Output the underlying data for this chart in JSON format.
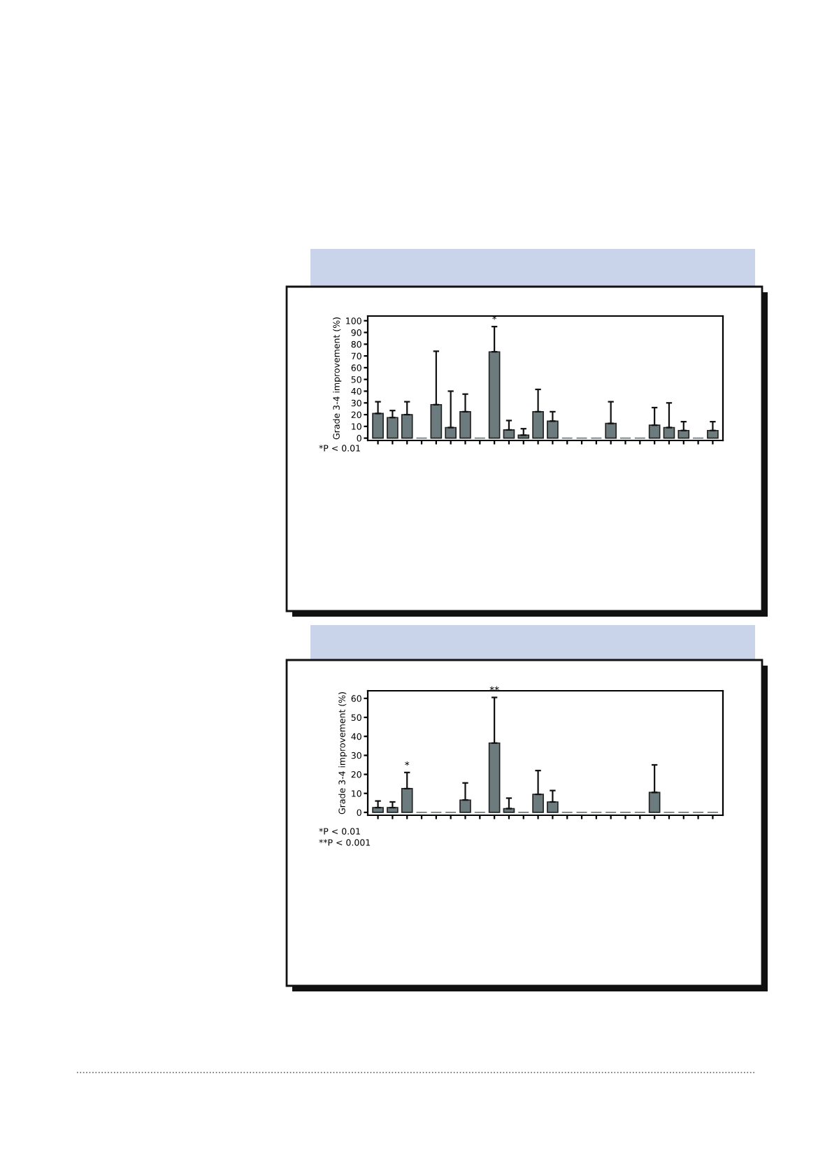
{
  "chart_data": [
    {
      "type": "bar",
      "ylabel": "Grade 3-4 improvement (%)",
      "categories": [
        null,
        null,
        null,
        null,
        null,
        null,
        null,
        null,
        null,
        null,
        null,
        null,
        null,
        null,
        null,
        null,
        null,
        null,
        null,
        null,
        null,
        null,
        null,
        null
      ],
      "values": [
        21,
        17.5,
        20,
        0,
        28.5,
        9,
        22.5,
        0,
        73.5,
        7,
        2.5,
        22.5,
        14.5,
        0,
        0,
        0,
        12.5,
        0,
        0,
        11,
        9,
        6.5,
        0,
        6.5
      ],
      "errors": [
        [
          21,
          31
        ],
        [
          17.5,
          23.5
        ],
        [
          20,
          31
        ],
        null,
        [
          28.5,
          74
        ],
        [
          9,
          40
        ],
        [
          22.5,
          37.5
        ],
        null,
        [
          73.5,
          95
        ],
        [
          7,
          15
        ],
        [
          2.5,
          8
        ],
        [
          22.5,
          41.5
        ],
        [
          14.5,
          22.5
        ],
        null,
        null,
        null,
        [
          12.5,
          31
        ],
        null,
        null,
        [
          11,
          26
        ],
        [
          9,
          30
        ],
        [
          6.5,
          14
        ],
        null,
        [
          6.5,
          14
        ]
      ],
      "color": "#6c7c7e",
      "ylim": [
        -2,
        104
      ],
      "yticks": [
        0,
        10,
        20,
        30,
        40,
        50,
        60,
        70,
        80,
        90,
        100
      ],
      "grid": false,
      "legend": false,
      "annotations": [
        {
          "text": "*",
          "y": 95
        },
        "*P < 0.01"
      ]
    },
    {
      "type": "bar",
      "ylabel": "Grade 3-4 improvement (%)",
      "categories": [
        null,
        null,
        null,
        null,
        null,
        null,
        null,
        null,
        null,
        null,
        null,
        null,
        null,
        null,
        null,
        null,
        null,
        null,
        null,
        null,
        null,
        null,
        null,
        null
      ],
      "values": [
        2.5,
        2.5,
        12.5,
        0,
        0,
        0,
        6.5,
        0,
        36.5,
        2,
        0,
        9.5,
        5.5,
        0,
        0,
        0,
        0,
        0,
        0,
        10.5,
        0,
        0,
        0,
        0
      ],
      "errors": [
        [
          2.5,
          6
        ],
        [
          2.5,
          5.5
        ],
        [
          12.5,
          21
        ],
        null,
        null,
        null,
        [
          6.5,
          15.5
        ],
        null,
        [
          36.5,
          60.5
        ],
        [
          2,
          7.5
        ],
        null,
        [
          9.5,
          22
        ],
        [
          5.5,
          11.5
        ],
        null,
        null,
        null,
        null,
        null,
        null,
        [
          10.5,
          25
        ],
        null,
        null,
        null,
        null
      ],
      "color": "#6c7c7e",
      "ylim": [
        -1.5,
        64
      ],
      "yticks": [
        0,
        10,
        20,
        30,
        40,
        50,
        60
      ],
      "grid": false,
      "legend": false,
      "annotations": [
        {
          "text": "*",
          "y": 21
        },
        {
          "text": "**",
          "y": 60.5
        },
        "*P < 0.01",
        "**P < 0.001"
      ]
    }
  ]
}
